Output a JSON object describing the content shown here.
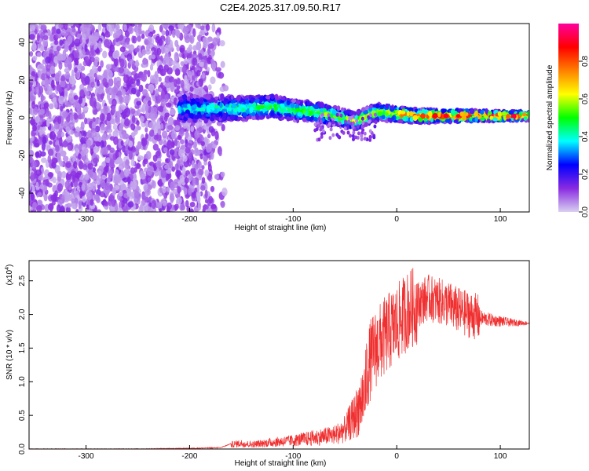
{
  "title": "C2E4.2025.317.09.50.R17",
  "chart_data": [
    {
      "type": "heatmap",
      "xlabel": "Height of straight line (km)",
      "ylabel": "Frequency (Hz)",
      "xlim": [
        -355,
        128
      ],
      "ylim": [
        -50,
        50
      ],
      "xticks": [
        -300,
        -200,
        -100,
        0,
        100
      ],
      "yticks": [
        -40,
        -20,
        0,
        20,
        40
      ],
      "colorbar": {
        "label": "Normalized spectral amplitude",
        "range": [
          0,
          1
        ],
        "ticks": [
          "0.0",
          "0.2",
          "0.4",
          "0.6",
          "0.8"
        ],
        "colors": [
          "#d8d0f0",
          "#8a2be2",
          "#0000ff",
          "#00ffff",
          "#00ff00",
          "#ffff00",
          "#ff8000",
          "#ff0000",
          "#ff00a0"
        ]
      },
      "noise_region_x": [
        -355,
        -180
      ],
      "ridge": [
        {
          "x": -210,
          "y": 5
        },
        {
          "x": -180,
          "y": 5
        },
        {
          "x": -150,
          "y": 5
        },
        {
          "x": -120,
          "y": 6
        },
        {
          "x": -100,
          "y": 4
        },
        {
          "x": -80,
          "y": 3
        },
        {
          "x": -60,
          "y": 1
        },
        {
          "x": -40,
          "y": -2
        },
        {
          "x": -20,
          "y": 3
        },
        {
          "x": 0,
          "y": 2
        },
        {
          "x": 20,
          "y": 1
        },
        {
          "x": 40,
          "y": 1
        },
        {
          "x": 60,
          "y": 1
        },
        {
          "x": 80,
          "y": 1
        },
        {
          "x": 100,
          "y": 1
        },
        {
          "x": 128,
          "y": 1
        }
      ]
    },
    {
      "type": "line",
      "xlabel": "Height of straight line (km)",
      "ylabel": "SNR (10 * v/v)",
      "yscale_note": "(x10",
      "yscale_exp": "4",
      "xlim": [
        -355,
        128
      ],
      "ylim": [
        0,
        2.8
      ],
      "xticks": [
        -300,
        -200,
        -100,
        0,
        100
      ],
      "yticks": [
        "0.0",
        "0.5",
        "1.0",
        "1.5",
        "2.0",
        "2.5"
      ],
      "color": "#f03030",
      "series": [
        {
          "x": [
            -355,
            -300,
            -250,
            -200,
            -170,
            -160,
            -150,
            -140,
            -120,
            -100,
            -80,
            -60,
            -50,
            -40,
            -30,
            -25,
            -20,
            -15,
            -10,
            -5,
            0,
            5,
            10,
            20,
            30,
            40,
            50,
            60,
            70,
            80,
            90,
            100,
            110,
            128
          ],
          "values": [
            0.0,
            0.0,
            0.0,
            0.01,
            0.02,
            0.08,
            0.1,
            0.08,
            0.12,
            0.15,
            0.2,
            0.25,
            0.35,
            0.6,
            1.05,
            1.35,
            1.5,
            1.6,
            1.7,
            1.78,
            1.85,
            1.95,
            2.05,
            2.15,
            2.25,
            2.2,
            2.15,
            2.05,
            2.0,
            1.95,
            1.92,
            1.9,
            1.88,
            1.87
          ]
        }
      ]
    }
  ]
}
